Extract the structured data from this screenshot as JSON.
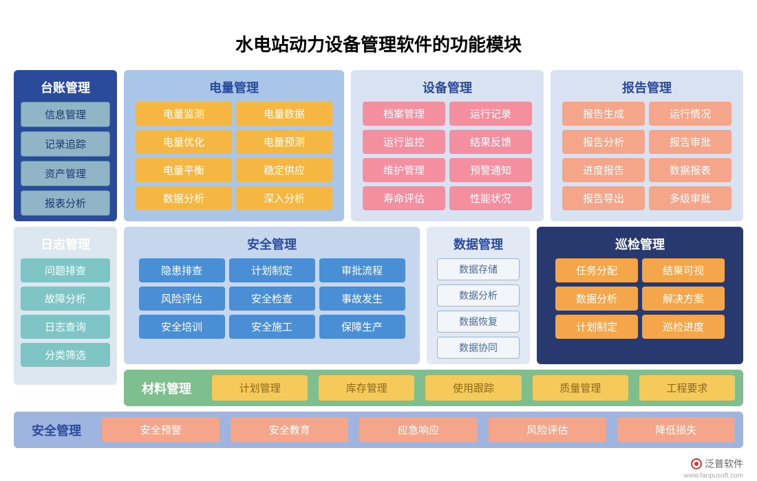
{
  "title": "水电站动力设备管理软件的功能模块",
  "colors": {
    "darkblue_bg": "#2a4b9b",
    "darkblue_item": "#8fb5c7",
    "darkblue_text": "#ffffff",
    "lightblue_bg": "#a9c6e8",
    "yellow_item": "#f5b742",
    "pink_item": "#f48fa0",
    "pink_text": "#ffffff",
    "lightpink_bg": "#d9e2f3",
    "peach_item": "#f5a58a",
    "graywhite_bg": "#dde7ef",
    "teal_item": "#7fc5c5",
    "blue2_bg": "#c6d7ed",
    "blue_item": "#4a8fd6",
    "blue_text": "#ffffff",
    "small_bg": "#e2e9f5",
    "small_item": "#f2f6fb",
    "small_border": "#9ab5d8",
    "navy_bg": "#27396f",
    "orange_item": "#f5a64a",
    "green_bg": "#7fbf8f",
    "yellow2_item": "#f5ca5a",
    "periwinkle_bg": "#9fb5e0"
  },
  "panels": {
    "ledger": {
      "title": "台账管理",
      "items": [
        "信息管理",
        "记录追踪",
        "资产管理",
        "报表分析"
      ]
    },
    "power": {
      "title": "电量管理",
      "items": [
        "电量监测",
        "电量数据",
        "电量优化",
        "电量预测",
        "电量平衡",
        "稳定供应",
        "数据分析",
        "深入分析"
      ]
    },
    "device": {
      "title": "设备管理",
      "items": [
        "档案管理",
        "运行记录",
        "运行监控",
        "结果反馈",
        "维护管理",
        "预警通知",
        "寿命评估",
        "性能状况"
      ]
    },
    "report": {
      "title": "报告管理",
      "items": [
        "报告生成",
        "运行情况",
        "报告分析",
        "报告审批",
        "进度报告",
        "数据报表",
        "报告导出",
        "多级审批"
      ]
    },
    "log": {
      "title": "日志管理",
      "items": [
        "问题排查",
        "故障分析",
        "日志查询",
        "分类筛选"
      ]
    },
    "safety": {
      "title": "安全管理",
      "items": [
        "隐患排查",
        "计划制定",
        "审批流程",
        "风险评估",
        "安全检查",
        "事故发生",
        "安全培训",
        "安全施工",
        "保障生产"
      ]
    },
    "data": {
      "title": "数据管理",
      "items": [
        "数据存储",
        "数据分析",
        "数据恢复",
        "数据协同"
      ]
    },
    "inspect": {
      "title": "巡检管理",
      "items": [
        "任务分配",
        "结果可视",
        "数据分析",
        "解决方案",
        "计划制定",
        "巡检进度"
      ]
    }
  },
  "bars": {
    "material": {
      "label": "材料管理",
      "items": [
        "计划管理",
        "库存管理",
        "使用跟踪",
        "质量管理",
        "工程要求"
      ]
    },
    "safety2": {
      "label": "安全管理",
      "items": [
        "安全预警",
        "安全教育",
        "应急响应",
        "风险评估",
        "降低损失"
      ]
    }
  },
  "logo": "泛普软件",
  "logo_url": "www.fanpusoft.com"
}
